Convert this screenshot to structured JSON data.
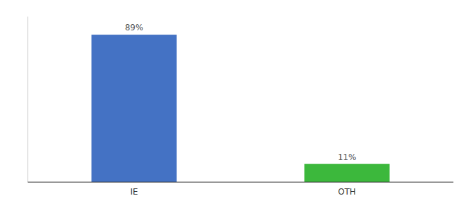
{
  "chart_data": {
    "type": "bar",
    "categories": [
      "IE",
      "OTH"
    ],
    "values": [
      89,
      11
    ],
    "value_labels": [
      "89%",
      "11%"
    ],
    "colors": [
      "#4472c4",
      "#3cb83c"
    ],
    "ylim": [
      0,
      100
    ],
    "data_labels": true,
    "tick_labels": "x",
    "grid": false
  }
}
